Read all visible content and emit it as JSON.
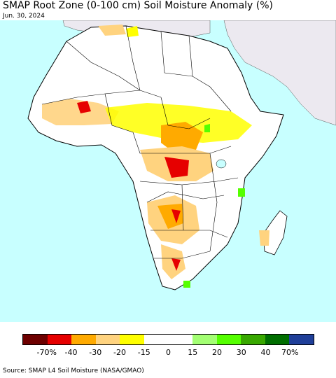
{
  "title": "SMAP Root Zone (0-100 cm) Soil Moisture Anomaly (%)",
  "date": "Jun. 30, 2024",
  "source": "Source: SMAP L4 Soil Moisture (NASA/GMAO)",
  "colors": {
    "ocean": "#c8ffff",
    "land_no_data": "#ffffff",
    "outside_region": "#ece9f0",
    "borders": "#000000"
  },
  "legend": {
    "swatches": [
      {
        "name": "very-dry",
        "color": "#6e0000"
      },
      {
        "name": "dry-40",
        "color": "#e60000"
      },
      {
        "name": "dry-30",
        "color": "#ffaa00"
      },
      {
        "name": "dry-20",
        "color": "#ffd37f"
      },
      {
        "name": "dry-15",
        "color": "#ffff00"
      },
      {
        "name": "neutral-low",
        "color": "#ffffff"
      },
      {
        "name": "neutral-high",
        "color": "#ffffff"
      },
      {
        "name": "wet-15",
        "color": "#a3ff73"
      },
      {
        "name": "wet-20",
        "color": "#55ff00"
      },
      {
        "name": "wet-30",
        "color": "#38a800"
      },
      {
        "name": "wet-40",
        "color": "#006e00"
      },
      {
        "name": "very-wet",
        "color": "#1f3f99"
      }
    ],
    "tick_labels": [
      "-70%",
      "-40",
      "-30",
      "-20",
      "-15",
      "0",
      "15",
      "20",
      "30",
      "40",
      "70%"
    ]
  }
}
